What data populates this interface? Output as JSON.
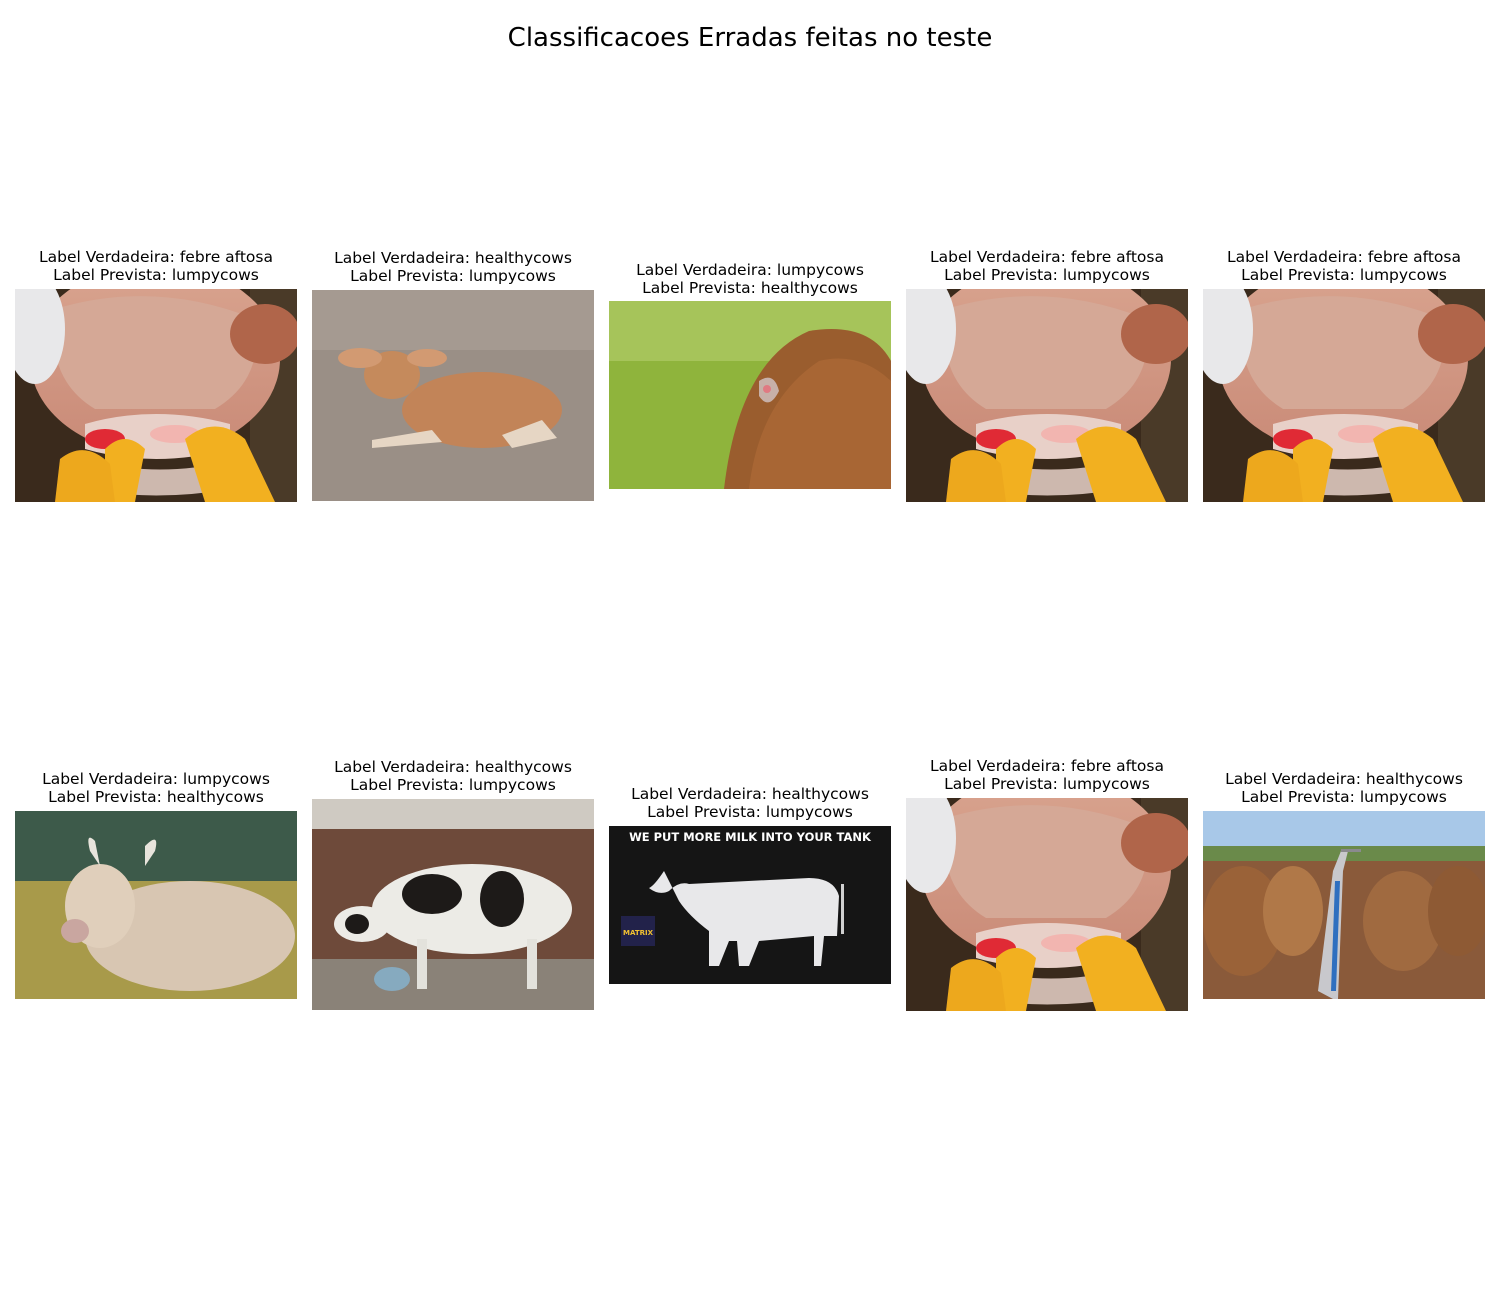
{
  "figure": {
    "title": "Classificacoes Erradas feitas no teste"
  },
  "panels": [
    {
      "true_label": "Label Verdadeira: febre aftosa",
      "pred_label": "Label Prevista: lumpycows",
      "photo": "cow-mouth-lesion"
    },
    {
      "true_label": "Label Verdadeira: healthycows",
      "pred_label": "Label Prevista: lumpycows",
      "photo": "calf-lying-on-dirt"
    },
    {
      "true_label": "Label Verdadeira: lumpycows",
      "pred_label": "Label Prevista: healthycows",
      "photo": "cow-back-skin-lesion"
    },
    {
      "true_label": "Label Verdadeira: febre aftosa",
      "pred_label": "Label Prevista: lumpycows",
      "photo": "cow-mouth-lesion"
    },
    {
      "true_label": "Label Verdadeira: febre aftosa",
      "pred_label": "Label Prevista: lumpycows",
      "photo": "cow-mouth-lesion"
    },
    {
      "true_label": "Label Verdadeira: lumpycows",
      "pred_label": "Label Prevista: healthycows",
      "photo": "cow-lying-in-meadow"
    },
    {
      "true_label": "Label Verdadeira: healthycows",
      "pred_label": "Label Prevista: lumpycows",
      "photo": "holstein-cow-in-stall"
    },
    {
      "true_label": "Label Verdadeira: healthycows",
      "pred_label": "Label Prevista: lumpycows",
      "photo": "white-cow-model-ad",
      "banner": "WE PUT MORE MILK INTO YOUR TANK",
      "logo": "MATRIX"
    },
    {
      "true_label": "Label Verdadeira: febre aftosa",
      "pred_label": "Label Prevista: lumpycows",
      "photo": "cow-mouth-lesion"
    },
    {
      "true_label": "Label Verdadeira: healthycows",
      "pred_label": "Label Prevista: lumpycows",
      "photo": "herd-at-milking-yard"
    }
  ]
}
